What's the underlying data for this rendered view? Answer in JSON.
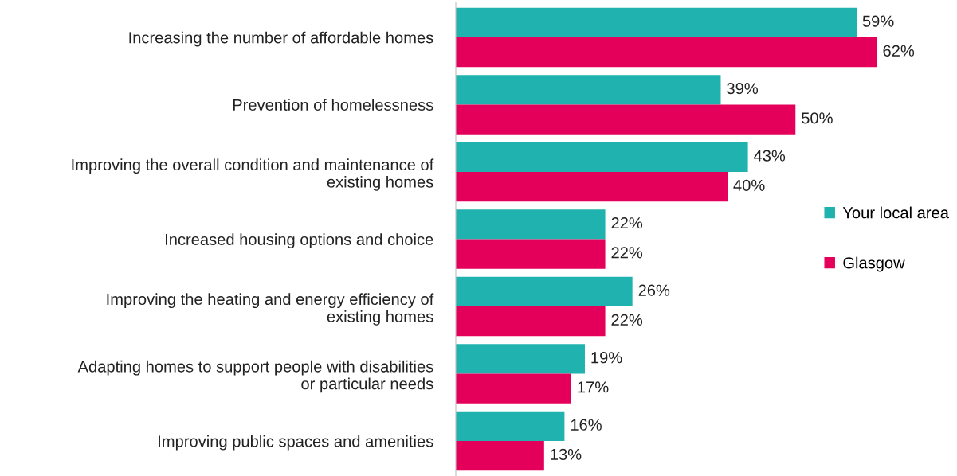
{
  "chart_data": {
    "type": "bar",
    "orientation": "horizontal",
    "legend": "right",
    "categories": [
      "Increasing the number of affordable homes",
      "Prevention of homelessness",
      "Improving the overall condition and maintenance of\nexisting homes",
      "Increased housing options and choice",
      "Improving the heating and energy efficiency of\nexisting homes",
      "Adapting homes to support people with disabilities\nor particular needs",
      "Improving public spaces and amenities"
    ],
    "series": [
      {
        "name": "Your local area",
        "color": "#20b2ae",
        "values": [
          59,
          39,
          43,
          22,
          26,
          19,
          16
        ],
        "value_labels": [
          "59%",
          "39%",
          "43%",
          "22%",
          "26%",
          "19%",
          "16%"
        ]
      },
      {
        "name": "Glasgow",
        "color": "#e4005a",
        "values": [
          62,
          50,
          40,
          22,
          22,
          17,
          13
        ],
        "value_labels": [
          "62%",
          "50%",
          "40%",
          "22%",
          "22%",
          "17%",
          "13%"
        ]
      }
    ]
  }
}
